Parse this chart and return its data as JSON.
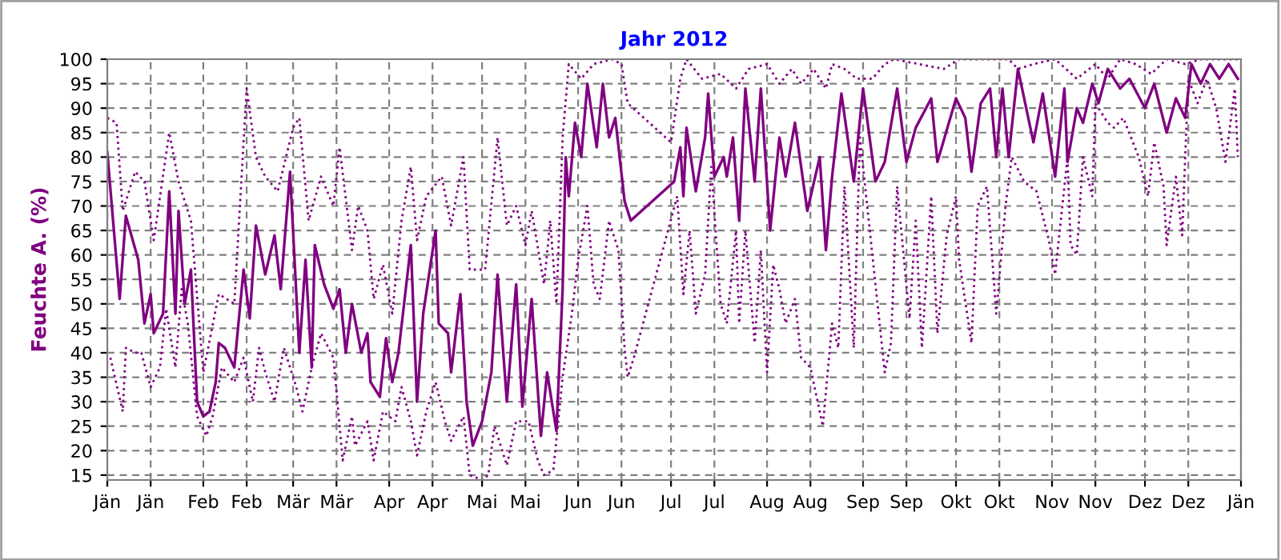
{
  "chart_data": {
    "type": "line",
    "title": "Jahr 2012",
    "ylabel": "Feuchte A. (%)",
    "xlim": [
      "2012-01-01",
      "2013-01-01"
    ],
    "xticks": [
      {
        "value": "2012-01-01",
        "label": "Jän"
      },
      {
        "value": "2012-01-15",
        "label": "Jän"
      },
      {
        "value": "2012-02-01",
        "label": "Feb"
      },
      {
        "value": "2012-02-15",
        "label": "Feb"
      },
      {
        "value": "2012-03-01",
        "label": "Mär"
      },
      {
        "value": "2012-03-15",
        "label": "Mär"
      },
      {
        "value": "2012-04-01",
        "label": "Apr"
      },
      {
        "value": "2012-04-15",
        "label": "Apr"
      },
      {
        "value": "2012-05-01",
        "label": "Mai"
      },
      {
        "value": "2012-05-15",
        "label": "Mai"
      },
      {
        "value": "2012-06-01",
        "label": "Jun"
      },
      {
        "value": "2012-06-15",
        "label": "Jun"
      },
      {
        "value": "2012-07-01",
        "label": "Jul"
      },
      {
        "value": "2012-07-15",
        "label": "Jul"
      },
      {
        "value": "2012-08-01",
        "label": "Aug"
      },
      {
        "value": "2012-08-15",
        "label": "Aug"
      },
      {
        "value": "2012-09-01",
        "label": "Sep"
      },
      {
        "value": "2012-09-15",
        "label": "Sep"
      },
      {
        "value": "2012-10-01",
        "label": "Okt"
      },
      {
        "value": "2012-10-15",
        "label": "Okt"
      },
      {
        "value": "2012-11-01",
        "label": "Nov"
      },
      {
        "value": "2012-11-15",
        "label": "Nov"
      },
      {
        "value": "2012-12-01",
        "label": "Dez"
      },
      {
        "value": "2012-12-15",
        "label": "Dez"
      },
      {
        "value": "2013-01-01",
        "label": "Jän"
      }
    ],
    "ylim": [
      14,
      100
    ],
    "yticks": [
      15,
      20,
      25,
      30,
      35,
      40,
      45,
      50,
      55,
      60,
      65,
      70,
      75,
      80,
      85,
      90,
      95,
      100
    ],
    "grid": true,
    "marker": "none",
    "series": [
      {
        "color": "#800080",
        "line_style": "dotted",
        "x": [
          "2012-01-01",
          "2012-01-04",
          "2012-01-06",
          "2012-01-10",
          "2012-01-13",
          "2012-01-16",
          "2012-01-21",
          "2012-01-24",
          "2012-01-28",
          "2012-02-01",
          "2012-02-06",
          "2012-02-11",
          "2012-02-15",
          "2012-02-18",
          "2012-02-21",
          "2012-02-25",
          "2012-03-01",
          "2012-03-03",
          "2012-03-06",
          "2012-03-10",
          "2012-03-14",
          "2012-03-16",
          "2012-03-20",
          "2012-03-22",
          "2012-03-25",
          "2012-03-27",
          "2012-03-30",
          "2012-04-02",
          "2012-04-05",
          "2012-04-08",
          "2012-04-10",
          "2012-04-13",
          "2012-04-18",
          "2012-04-21",
          "2012-04-25",
          "2012-04-27",
          "2012-05-02",
          "2012-05-06",
          "2012-05-09",
          "2012-05-12",
          "2012-05-15",
          "2012-05-17",
          "2012-05-21",
          "2012-05-23",
          "2012-05-25",
          "2012-05-27",
          "2012-05-29",
          "2012-06-02",
          "2012-06-06",
          "2012-06-12",
          "2012-06-15",
          "2012-06-17",
          "2012-07-01",
          "2012-07-04",
          "2012-07-06",
          "2012-07-11",
          "2012-07-17",
          "2012-07-22",
          "2012-07-26",
          "2012-08-01",
          "2012-08-05",
          "2012-08-09",
          "2012-08-12",
          "2012-08-16",
          "2012-08-20",
          "2012-08-22",
          "2012-08-26",
          "2012-08-30",
          "2012-09-04",
          "2012-09-08",
          "2012-09-11",
          "2012-09-19",
          "2012-09-27",
          "2012-10-02",
          "2012-10-10",
          "2012-10-18",
          "2012-10-21",
          "2012-10-26",
          "2012-11-02",
          "2012-11-09",
          "2012-11-15",
          "2012-11-19",
          "2012-11-23",
          "2012-11-28",
          "2012-12-03",
          "2012-12-08",
          "2012-12-14",
          "2012-12-19",
          "2012-12-24",
          "2012-12-31"
        ],
        "values": [
          88,
          87,
          69,
          77,
          75,
          63,
          85,
          75,
          67,
          36,
          52,
          50,
          94,
          80,
          76,
          73,
          86,
          88,
          67,
          76,
          70,
          82,
          61,
          70,
          65,
          51,
          58,
          48,
          67,
          78,
          63,
          72,
          76,
          66,
          80,
          57,
          57,
          84,
          66,
          70,
          62,
          69,
          54,
          67,
          50,
          84,
          99,
          96,
          99,
          100,
          99,
          91,
          83,
          96,
          100,
          96,
          97,
          94,
          98,
          99,
          95,
          98,
          95,
          98,
          94,
          99,
          98,
          96,
          96,
          99,
          100,
          99,
          98,
          100,
          100,
          100,
          98,
          99,
          100,
          96,
          99,
          96,
          100,
          99,
          97,
          100,
          99,
          100,
          100,
          100
        ]
      },
      {
        "color": "#800080",
        "line_style": "dotted",
        "x": [
          "2012-01-02",
          "2012-01-06",
          "2012-01-07",
          "2012-01-10",
          "2012-01-12",
          "2012-01-15",
          "2012-01-18",
          "2012-01-20",
          "2012-01-23",
          "2012-01-25",
          "2012-01-27",
          "2012-01-30",
          "2012-02-02",
          "2012-02-04",
          "2012-02-07",
          "2012-02-11",
          "2012-02-14",
          "2012-02-17",
          "2012-02-19",
          "2012-02-21",
          "2012-02-24",
          "2012-02-27",
          "2012-03-02",
          "2012-03-04",
          "2012-03-07",
          "2012-03-10",
          "2012-03-14",
          "2012-03-17",
          "2012-03-20",
          "2012-03-21",
          "2012-03-25",
          "2012-03-27",
          "2012-03-30",
          "2012-04-03",
          "2012-04-05",
          "2012-04-08",
          "2012-04-10",
          "2012-04-13",
          "2012-04-16",
          "2012-04-19",
          "2012-04-21",
          "2012-04-25",
          "2012-04-27",
          "2012-05-01",
          "2012-05-03",
          "2012-05-05",
          "2012-05-09",
          "2012-05-12",
          "2012-05-16",
          "2012-05-19",
          "2012-05-21",
          "2012-05-24",
          "2012-05-27",
          "2012-05-30",
          "2012-06-01",
          "2012-06-04",
          "2012-06-06",
          "2012-06-08",
          "2012-06-11",
          "2012-06-14",
          "2012-06-16",
          "2012-06-17",
          "2012-06-19",
          "2012-07-03",
          "2012-07-05",
          "2012-07-07",
          "2012-07-09",
          "2012-07-12",
          "2012-07-14",
          "2012-07-17",
          "2012-07-19",
          "2012-07-22",
          "2012-07-23",
          "2012-07-25",
          "2012-07-28",
          "2012-07-30",
          "2012-08-01",
          "2012-08-03",
          "2012-08-05",
          "2012-08-07",
          "2012-08-10",
          "2012-08-12",
          "2012-08-15",
          "2012-08-19",
          "2012-08-22",
          "2012-08-24",
          "2012-08-26",
          "2012-08-29",
          "2012-08-31",
          "2012-09-03",
          "2012-09-08",
          "2012-09-10",
          "2012-09-12",
          "2012-09-16",
          "2012-09-18",
          "2012-09-20",
          "2012-09-23",
          "2012-09-25",
          "2012-09-28",
          "2012-10-01",
          "2012-10-02",
          "2012-10-06",
          "2012-10-08",
          "2012-10-11",
          "2012-10-14",
          "2012-10-17",
          "2012-10-19",
          "2012-10-23",
          "2012-10-27",
          "2012-10-31",
          "2012-11-02",
          "2012-11-06",
          "2012-11-07",
          "2012-11-09",
          "2012-11-11",
          "2012-11-14",
          "2012-11-15",
          "2012-11-19",
          "2012-11-21",
          "2012-11-24",
          "2012-11-29",
          "2012-12-02",
          "2012-12-04",
          "2012-12-07",
          "2012-12-08",
          "2012-12-11",
          "2012-12-13",
          "2012-12-15",
          "2012-12-18",
          "2012-12-21",
          "2012-12-24",
          "2012-12-27",
          "2012-12-30",
          "2012-12-31"
        ],
        "values": [
          39,
          28,
          41,
          40,
          40,
          33,
          37,
          49,
          37,
          53,
          46,
          27,
          23,
          27,
          37,
          34,
          39,
          30,
          41,
          36,
          30,
          41,
          33,
          28,
          37,
          44,
          39,
          18,
          27,
          21,
          26,
          18,
          28,
          26,
          33,
          26,
          19,
          28,
          34,
          26,
          22,
          27,
          15,
          14,
          15,
          25,
          17,
          26,
          26,
          18,
          15,
          16,
          35,
          48,
          59,
          70,
          54,
          51,
          67,
          61,
          41,
          35,
          39,
          72,
          52,
          65,
          48,
          56,
          78,
          50,
          46,
          65,
          46,
          65,
          42,
          61,
          36,
          58,
          53,
          46,
          51,
          39,
          37,
          25,
          46,
          41,
          74,
          41,
          84,
          66,
          36,
          42,
          74,
          47,
          67,
          41,
          72,
          44,
          64,
          72,
          59,
          42,
          70,
          74,
          48,
          70,
          80,
          75,
          73,
          63,
          56,
          80,
          62,
          60,
          80,
          72,
          91,
          87,
          86,
          88,
          80,
          72,
          83,
          74,
          62,
          76,
          64,
          96,
          91,
          96,
          90,
          79,
          94,
          80
        ]
      },
      {
        "color": "#800080",
        "line_style": "solid",
        "x": [
          "2012-01-01",
          "2012-01-05",
          "2012-01-07",
          "2012-01-11",
          "2012-01-13",
          "2012-01-15",
          "2012-01-16",
          "2012-01-19",
          "2012-01-21",
          "2012-01-23",
          "2012-01-24",
          "2012-01-26",
          "2012-01-28",
          "2012-01-30",
          "2012-02-01",
          "2012-02-03",
          "2012-02-05",
          "2012-02-06",
          "2012-02-08",
          "2012-02-11",
          "2012-02-14",
          "2012-02-16",
          "2012-02-18",
          "2012-02-21",
          "2012-02-24",
          "2012-02-26",
          "2012-02-29",
          "2012-03-03",
          "2012-03-05",
          "2012-03-07",
          "2012-03-08",
          "2012-03-11",
          "2012-03-14",
          "2012-03-16",
          "2012-03-18",
          "2012-03-20",
          "2012-03-23",
          "2012-03-25",
          "2012-03-26",
          "2012-03-29",
          "2012-03-31",
          "2012-04-02",
          "2012-04-04",
          "2012-04-08",
          "2012-04-10",
          "2012-04-12",
          "2012-04-16",
          "2012-04-17",
          "2012-04-20",
          "2012-04-21",
          "2012-04-24",
          "2012-04-26",
          "2012-04-28",
          "2012-05-01",
          "2012-05-04",
          "2012-05-06",
          "2012-05-09",
          "2012-05-12",
          "2012-05-14",
          "2012-05-17",
          "2012-05-20",
          "2012-05-22",
          "2012-05-25",
          "2012-05-27",
          "2012-05-28",
          "2012-05-29",
          "2012-05-31",
          "2012-06-02",
          "2012-06-04",
          "2012-06-07",
          "2012-06-09",
          "2012-06-11",
          "2012-06-13",
          "2012-06-16",
          "2012-06-18",
          "2012-07-02",
          "2012-07-04",
          "2012-07-05",
          "2012-07-06",
          "2012-07-09",
          "2012-07-12",
          "2012-07-13",
          "2012-07-15",
          "2012-07-18",
          "2012-07-19",
          "2012-07-21",
          "2012-07-23",
          "2012-07-25",
          "2012-07-28",
          "2012-07-30",
          "2012-08-02",
          "2012-08-05",
          "2012-08-07",
          "2012-08-10",
          "2012-08-14",
          "2012-08-18",
          "2012-08-20",
          "2012-08-22",
          "2012-08-25",
          "2012-08-29",
          "2012-09-01",
          "2012-09-05",
          "2012-09-08",
          "2012-09-12",
          "2012-09-15",
          "2012-09-18",
          "2012-09-23",
          "2012-09-25",
          "2012-10-01",
          "2012-10-04",
          "2012-10-06",
          "2012-10-09",
          "2012-10-12",
          "2012-10-14",
          "2012-10-16",
          "2012-10-18",
          "2012-10-21",
          "2012-10-23",
          "2012-10-26",
          "2012-10-29",
          "2012-11-02",
          "2012-11-05",
          "2012-11-06",
          "2012-11-09",
          "2012-11-11",
          "2012-11-14",
          "2012-11-16",
          "2012-11-19",
          "2012-11-23",
          "2012-11-26",
          "2012-12-01",
          "2012-12-04",
          "2012-12-08",
          "2012-12-11",
          "2012-12-14",
          "2012-12-16",
          "2012-12-19",
          "2012-12-22",
          "2012-12-25",
          "2012-12-28",
          "2012-12-31"
        ],
        "values": [
          81,
          51,
          68,
          59,
          46,
          52,
          44,
          48,
          73,
          48,
          69,
          50,
          57,
          30,
          27,
          28,
          34,
          42,
          41,
          37,
          57,
          47,
          66,
          56,
          64,
          53,
          77,
          40,
          59,
          37,
          62,
          54,
          49,
          53,
          40,
          50,
          40,
          44,
          34,
          31,
          43,
          34,
          40,
          62,
          30,
          48,
          65,
          46,
          44,
          36,
          52,
          30,
          21,
          26,
          36,
          56,
          30,
          54,
          29,
          51,
          23,
          36,
          24,
          53,
          80,
          72,
          87,
          80,
          95,
          82,
          95,
          84,
          88,
          71,
          67,
          75,
          82,
          72,
          86,
          73,
          84,
          93,
          76,
          80,
          76,
          84,
          67,
          94,
          75,
          94,
          65,
          84,
          76,
          87,
          69,
          80,
          61,
          76,
          93,
          75,
          94,
          75,
          79,
          94,
          79,
          86,
          92,
          79,
          92,
          88,
          77,
          91,
          94,
          80,
          94,
          80,
          98,
          92,
          83,
          93,
          76,
          94,
          79,
          90,
          87,
          95,
          91,
          98,
          94,
          96,
          90,
          95,
          85,
          92,
          88,
          99,
          95,
          99,
          96,
          99,
          96
        ]
      }
    ]
  }
}
